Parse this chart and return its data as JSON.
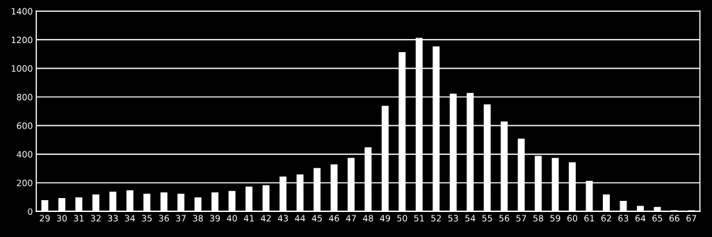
{
  "chart_data": {
    "type": "bar",
    "categories": [
      "29",
      "30",
      "31",
      "32",
      "33",
      "34",
      "35",
      "36",
      "37",
      "38",
      "39",
      "40",
      "41",
      "42",
      "43",
      "44",
      "45",
      "46",
      "47",
      "48",
      "49",
      "50",
      "51",
      "52",
      "53",
      "54",
      "55",
      "56",
      "57",
      "58",
      "59",
      "60",
      "61",
      "62",
      "63",
      "64",
      "65",
      "66",
      "67"
    ],
    "values": [
      75,
      90,
      95,
      115,
      135,
      145,
      120,
      130,
      120,
      95,
      130,
      140,
      170,
      180,
      240,
      255,
      300,
      325,
      370,
      445,
      735,
      1110,
      1210,
      1150,
      820,
      825,
      745,
      625,
      505,
      385,
      370,
      340,
      210,
      115,
      70,
      35,
      28,
      5,
      5
    ],
    "color": "#ffffff",
    "ylim": [
      0,
      1400
    ],
    "yticks": [
      0,
      200,
      400,
      600,
      800,
      1000,
      1200,
      1400
    ],
    "grid": "y"
  }
}
